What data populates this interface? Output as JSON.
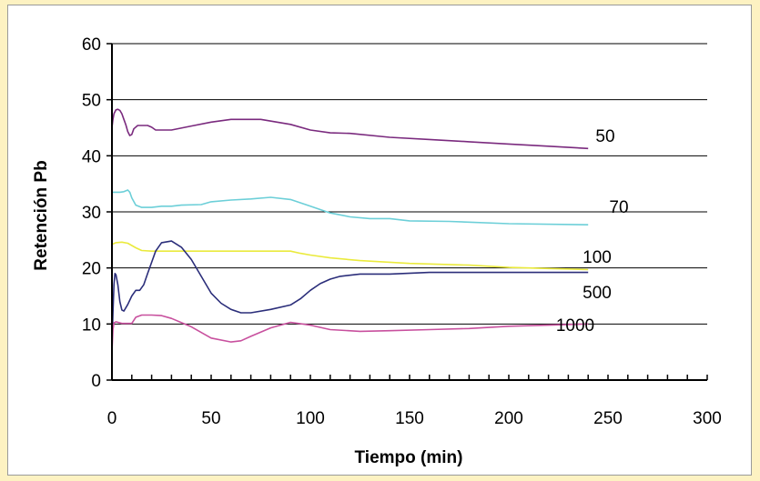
{
  "chart_data": {
    "type": "line",
    "title": "",
    "xlabel": "Tiempo (min)",
    "ylabel": "Retención Pb",
    "xlim": [
      0,
      300
    ],
    "ylim": [
      0,
      60
    ],
    "xticks": [
      0,
      50,
      100,
      150,
      200,
      250,
      300
    ],
    "yticks": [
      0,
      10,
      20,
      30,
      40,
      50,
      60
    ],
    "grid": "horizontal",
    "legend": "inline-right",
    "series": [
      {
        "name": "50",
        "color": "#7a2a7e",
        "points": [
          [
            0,
            45
          ],
          [
            0.5,
            46.5
          ],
          [
            1,
            47.5
          ],
          [
            2,
            48.2
          ],
          [
            3,
            48.3
          ],
          [
            4,
            48.1
          ],
          [
            5,
            47.5
          ],
          [
            6,
            46.5
          ],
          [
            7,
            45.5
          ],
          [
            8,
            44.3
          ],
          [
            9,
            43.6
          ],
          [
            10,
            43.8
          ],
          [
            11,
            44.8
          ],
          [
            13,
            45.4
          ],
          [
            18,
            45.4
          ],
          [
            20,
            45.1
          ],
          [
            22,
            44.6
          ],
          [
            30,
            44.6
          ],
          [
            40,
            45.3
          ],
          [
            50,
            46
          ],
          [
            60,
            46.5
          ],
          [
            75,
            46.5
          ],
          [
            90,
            45.6
          ],
          [
            100,
            44.6
          ],
          [
            110,
            44.1
          ],
          [
            120,
            44
          ],
          [
            140,
            43.3
          ],
          [
            160,
            42.9
          ],
          [
            180,
            42.5
          ],
          [
            200,
            42.1
          ],
          [
            220,
            41.7
          ],
          [
            240,
            41.3
          ]
        ],
        "label": "50"
      },
      {
        "name": "70",
        "color": "#6ccfd8",
        "points": [
          [
            0,
            33.5
          ],
          [
            2,
            33.5
          ],
          [
            4,
            33.5
          ],
          [
            6,
            33.6
          ],
          [
            8,
            33.9
          ],
          [
            9,
            33.5
          ],
          [
            10,
            32.5
          ],
          [
            12,
            31.2
          ],
          [
            15,
            30.8
          ],
          [
            18,
            30.8
          ],
          [
            20,
            30.8
          ],
          [
            25,
            31
          ],
          [
            30,
            31
          ],
          [
            35,
            31.2
          ],
          [
            45,
            31.3
          ],
          [
            50,
            31.8
          ],
          [
            60,
            32.1
          ],
          [
            70,
            32.3
          ],
          [
            80,
            32.6
          ],
          [
            90,
            32.2
          ],
          [
            100,
            31
          ],
          [
            110,
            29.8
          ],
          [
            120,
            29.1
          ],
          [
            130,
            28.8
          ],
          [
            140,
            28.8
          ],
          [
            150,
            28.4
          ],
          [
            170,
            28.3
          ],
          [
            200,
            27.9
          ],
          [
            240,
            27.7
          ]
        ],
        "label": "70"
      },
      {
        "name": "100",
        "color": "#eaea3c",
        "points": [
          [
            0,
            24.2
          ],
          [
            2,
            24.5
          ],
          [
            5,
            24.6
          ],
          [
            8,
            24.4
          ],
          [
            10,
            24
          ],
          [
            12,
            23.6
          ],
          [
            15,
            23.1
          ],
          [
            20,
            23
          ],
          [
            40,
            23
          ],
          [
            60,
            23
          ],
          [
            90,
            23
          ],
          [
            95,
            22.6
          ],
          [
            100,
            22.3
          ],
          [
            110,
            21.8
          ],
          [
            125,
            21.3
          ],
          [
            150,
            20.8
          ],
          [
            180,
            20.5
          ],
          [
            200,
            20.1
          ],
          [
            220,
            19.9
          ],
          [
            240,
            19.7
          ]
        ],
        "label": "100"
      },
      {
        "name": "500",
        "color": "#2b2e7a",
        "points": [
          [
            0,
            6
          ],
          [
            0.5,
            12
          ],
          [
            1,
            17
          ],
          [
            1.5,
            19
          ],
          [
            2,
            18.8
          ],
          [
            3,
            17
          ],
          [
            4,
            14
          ],
          [
            5,
            12.5
          ],
          [
            6,
            12.3
          ],
          [
            8,
            13.5
          ],
          [
            10,
            15
          ],
          [
            12,
            16
          ],
          [
            14,
            16
          ],
          [
            16,
            17
          ],
          [
            18,
            19
          ],
          [
            20,
            21
          ],
          [
            22,
            23
          ],
          [
            25,
            24.5
          ],
          [
            30,
            24.8
          ],
          [
            35,
            23.7
          ],
          [
            40,
            21.5
          ],
          [
            45,
            18.5
          ],
          [
            50,
            15.5
          ],
          [
            55,
            13.7
          ],
          [
            60,
            12.6
          ],
          [
            65,
            12
          ],
          [
            70,
            12
          ],
          [
            80,
            12.6
          ],
          [
            90,
            13.4
          ],
          [
            95,
            14.5
          ],
          [
            100,
            16
          ],
          [
            105,
            17.2
          ],
          [
            110,
            18
          ],
          [
            115,
            18.5
          ],
          [
            125,
            18.9
          ],
          [
            140,
            18.9
          ],
          [
            160,
            19.2
          ],
          [
            200,
            19.2
          ],
          [
            240,
            19.2
          ]
        ],
        "label": "500"
      },
      {
        "name": "1000",
        "color": "#c8509e",
        "points": [
          [
            0,
            5
          ],
          [
            0.5,
            9
          ],
          [
            1,
            10.2
          ],
          [
            2,
            10.4
          ],
          [
            5,
            10.1
          ],
          [
            10,
            10.1
          ],
          [
            12,
            11.2
          ],
          [
            15,
            11.6
          ],
          [
            20,
            11.6
          ],
          [
            25,
            11.5
          ],
          [
            30,
            11
          ],
          [
            40,
            9.5
          ],
          [
            50,
            7.5
          ],
          [
            60,
            6.8
          ],
          [
            65,
            7
          ],
          [
            70,
            7.8
          ],
          [
            80,
            9.3
          ],
          [
            90,
            10.3
          ],
          [
            100,
            9.8
          ],
          [
            110,
            9
          ],
          [
            125,
            8.7
          ],
          [
            140,
            8.8
          ],
          [
            160,
            9
          ],
          [
            180,
            9.2
          ],
          [
            200,
            9.6
          ],
          [
            220,
            9.8
          ],
          [
            240,
            10
          ]
        ],
        "label": "1000"
      }
    ]
  }
}
